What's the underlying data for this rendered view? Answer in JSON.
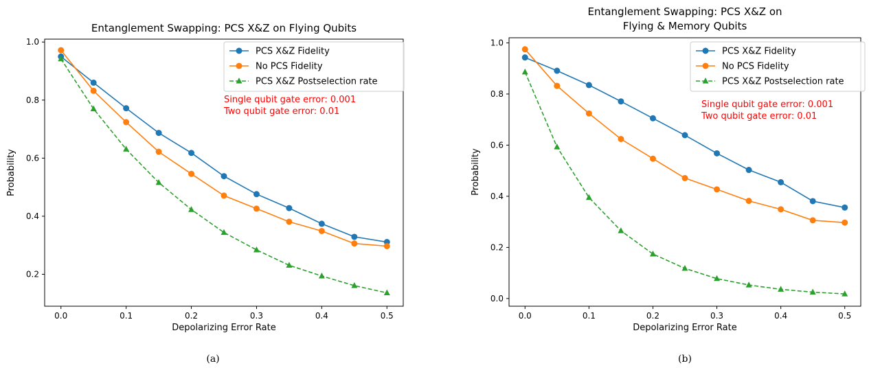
{
  "chart_data": [
    {
      "type": "line",
      "title": [
        "Entanglement Swapping: PCS X&Z on Flying Qubits"
      ],
      "xlabel": "Depolarizing Error Rate",
      "ylabel": "Probability",
      "caption": "(a)",
      "x": [
        0.0,
        0.05,
        0.1,
        0.15,
        0.2,
        0.25,
        0.3,
        0.35,
        0.4,
        0.45,
        0.5
      ],
      "xlim": [
        -0.025,
        0.525
      ],
      "ylim": [
        0.09,
        1.01
      ],
      "xticks": [
        0.0,
        0.1,
        0.2,
        0.3,
        0.4,
        0.5
      ],
      "xtick_labels": [
        "0.0",
        "0.1",
        "0.2",
        "0.3",
        "0.4",
        "0.5"
      ],
      "yticks": [
        0.2,
        0.4,
        0.6,
        0.8,
        1.0
      ],
      "ytick_labels": [
        "0.2",
        "0.4",
        "0.6",
        "0.8",
        "1.0"
      ],
      "grid": false,
      "legend_position": "top-right",
      "annotation": [
        "Single qubit gate error: 0.001",
        "Two qubit gate error: 0.01"
      ],
      "annotation_color": "#ff0000",
      "series": [
        {
          "name": "PCS X&Z Fidelity",
          "color": "#1f77b4",
          "marker": "circle",
          "dashed": false,
          "values": [
            0.95,
            0.86,
            0.772,
            0.687,
            0.618,
            0.538,
            0.476,
            0.428,
            0.374,
            0.329,
            0.311
          ]
        },
        {
          "name": "No PCS Fidelity",
          "color": "#ff7f0e",
          "marker": "circle",
          "dashed": false,
          "values": [
            0.972,
            0.832,
            0.724,
            0.622,
            0.546,
            0.471,
            0.426,
            0.381,
            0.349,
            0.306,
            0.297
          ]
        },
        {
          "name": "PCS X&Z Postselection rate",
          "color": "#2ca02c",
          "marker": "triangle",
          "dashed": true,
          "values": [
            0.942,
            0.77,
            0.631,
            0.516,
            0.423,
            0.344,
            0.284,
            0.231,
            0.194,
            0.161,
            0.136
          ]
        }
      ]
    },
    {
      "type": "line",
      "title": [
        "Entanglement Swapping: PCS X&Z on",
        "Flying & Memory Qubits"
      ],
      "xlabel": "Depolarizing Error Rate",
      "ylabel": "Probability",
      "caption": "(b)",
      "x": [
        0.0,
        0.05,
        0.1,
        0.15,
        0.2,
        0.25,
        0.3,
        0.35,
        0.4,
        0.45,
        0.5
      ],
      "xlim": [
        -0.025,
        0.525
      ],
      "ylim": [
        -0.03,
        1.02
      ],
      "xticks": [
        0.0,
        0.1,
        0.2,
        0.3,
        0.4,
        0.5
      ],
      "xtick_labels": [
        "0.0",
        "0.1",
        "0.2",
        "0.3",
        "0.4",
        "0.5"
      ],
      "yticks": [
        0.0,
        0.2,
        0.4,
        0.6,
        0.8,
        1.0
      ],
      "ytick_labels": [
        "0.0",
        "0.2",
        "0.4",
        "0.6",
        "0.8",
        "1.0"
      ],
      "grid": false,
      "legend_position": "top-right",
      "annotation": [
        "Single qubit gate error: 0.001",
        "Two qubit gate error: 0.01"
      ],
      "annotation_color": "#ff0000",
      "series": [
        {
          "name": "PCS X&Z Fidelity",
          "color": "#1f77b4",
          "marker": "circle",
          "dashed": false,
          "values": [
            0.943,
            0.891,
            0.835,
            0.771,
            0.705,
            0.639,
            0.568,
            0.503,
            0.455,
            0.381,
            0.356
          ]
        },
        {
          "name": "No PCS Fidelity",
          "color": "#ff7f0e",
          "marker": "circle",
          "dashed": false,
          "values": [
            0.975,
            0.832,
            0.724,
            0.624,
            0.547,
            0.471,
            0.427,
            0.382,
            0.349,
            0.306,
            0.297
          ]
        },
        {
          "name": "PCS X&Z Postselection rate",
          "color": "#2ca02c",
          "marker": "triangle",
          "dashed": true,
          "values": [
            0.886,
            0.593,
            0.395,
            0.265,
            0.174,
            0.118,
            0.078,
            0.053,
            0.036,
            0.025,
            0.018
          ]
        }
      ]
    }
  ]
}
